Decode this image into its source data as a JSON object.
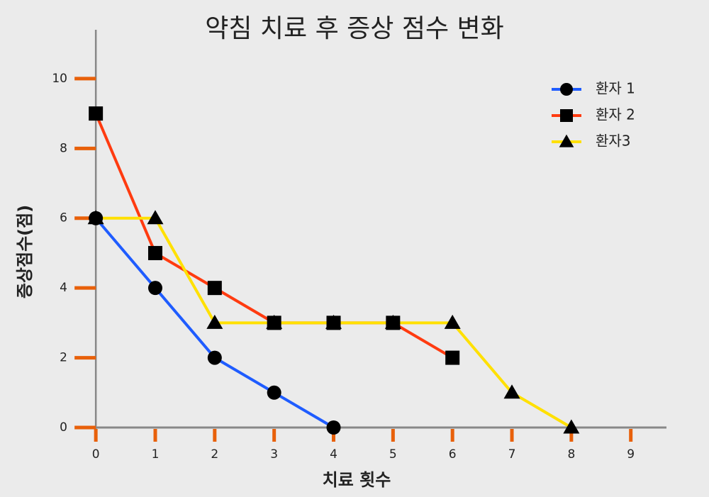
{
  "chart_data": {
    "type": "line",
    "title": "약침 치료 후 증상 점수 변화",
    "x_label": "치료 횟수",
    "y_label": "증상점수(점)",
    "x": [
      0,
      1,
      2,
      3,
      4,
      5,
      6,
      7,
      8
    ],
    "series": [
      {
        "name": "환자 1",
        "color": "#1f5cff",
        "marker": "circle",
        "values": [
          6,
          4,
          2,
          1,
          0,
          null,
          null,
          null,
          null
        ]
      },
      {
        "name": "환자 2",
        "color": "#ff3b10",
        "marker": "square",
        "values": [
          9,
          5,
          4,
          3,
          3,
          3,
          2,
          null,
          null
        ]
      },
      {
        "name": "환자3",
        "color": "#ffe000",
        "marker": "triangle",
        "values": [
          6,
          6,
          3,
          3,
          3,
          3,
          3,
          1,
          0
        ]
      }
    ],
    "xlim": [
      -0.3,
      9.6
    ],
    "ylim": [
      0,
      11.4
    ],
    "xticks": [
      0,
      1,
      2,
      3,
      4,
      5,
      6,
      7,
      8,
      9
    ],
    "yticks": [
      0,
      2,
      4,
      6,
      8,
      10
    ],
    "tick_color": "#e8600a",
    "legend": "upper right"
  }
}
